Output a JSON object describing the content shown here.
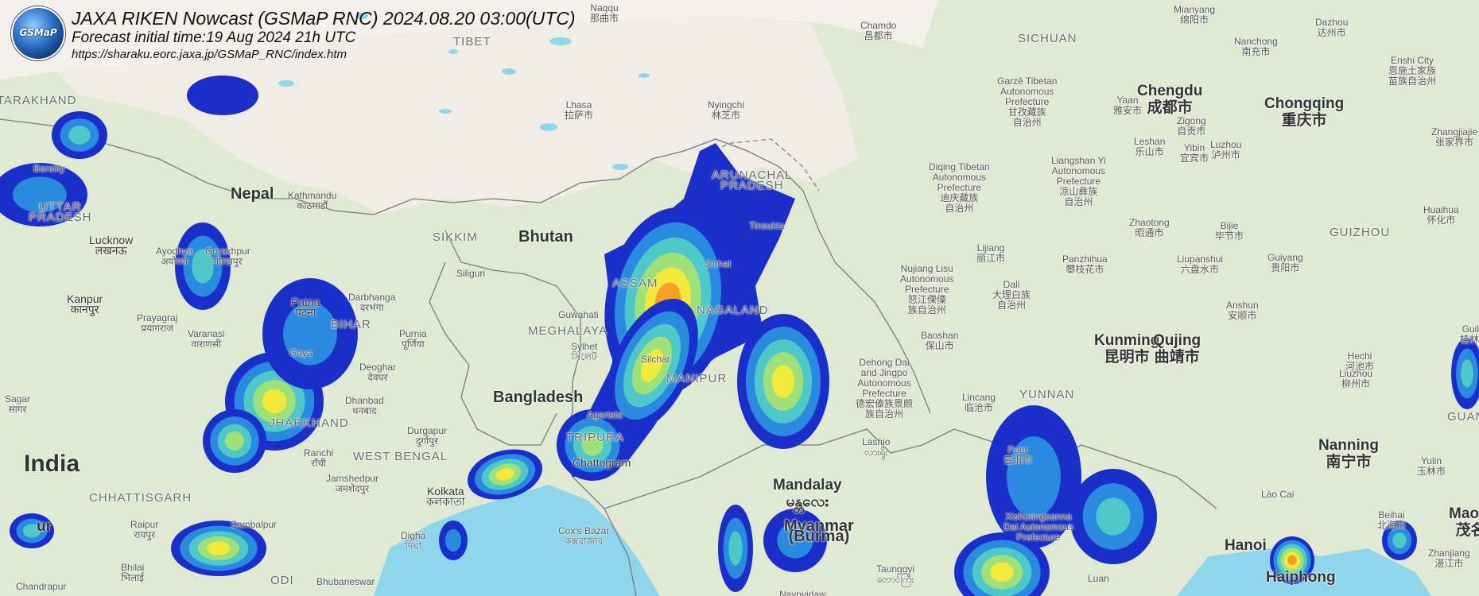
{
  "header": {
    "logo_text": "GSMaP",
    "title": "JAXA RIKEN Nowcast (GSMaP RNC) 2024.08.20 03:00(UTC)",
    "forecast": "Forecast initial time:19 Aug 2024 21h UTC",
    "url": "https://sharaku.eorc.jaxa.jp/GSMaP_RNC/index.htm"
  },
  "colors": {
    "land": "#dfe9d3",
    "plateau": "#f1ede6",
    "water": "#8fd6ec",
    "rain_light": "#1a2fc9",
    "rain_mod": "#2a8ae0",
    "rain_medium": "#4ec8c8",
    "rain_heavy": "#9ee07a",
    "rain_very_heavy": "#f2ea3a",
    "rain_extreme": "#f4a020"
  },
  "labels": {
    "naqqu": "Naqqu\n那曲市",
    "chamdo": "Chamdo\n昌都市",
    "mianyang": "Mianyang\n绵阳市",
    "dazhou": "Dazhou\n达州市",
    "tibet": "TIBET",
    "sichuan": "SICHUAN",
    "nanchong": "Nanchong\n南充市",
    "enshi": "Enshi City\n恩施土家族\n苗族自治州",
    "garze": "Garzê Tibetan\nAutonomous\nPrefecture\n甘孜藏族\n自治州",
    "yaan": "Yaan\n雅安市",
    "chengdu": "Chengdu\n成都市",
    "chongqing": "Chongqing\n重庆市",
    "lhasa": "Lhasa\n拉萨市",
    "nyingchi": "Nyingchi\n林芝市",
    "zigong": "Zigong\n自贡市",
    "leshan": "Leshan\n乐山市",
    "yibin": "Yibin\n宜宾市",
    "luzhou": "Luzhou\n泸州市",
    "zhangjiajie": "Zhangjiajie\n张家界市",
    "tarakhand": "TARAKHAND",
    "bareilly": "Bareilly",
    "arunachal": "ARUNACHAL\nPRADESH",
    "diqing": "Diqing Tibetan\nAutonomous\nPrefecture\n迪庆藏族\n自治州",
    "liangshan": "Liangshan Yi\nAutonomous\nPrefecture\n凉山彝族\n自治州",
    "huaihua": "Huaihua\n怀化市",
    "nepal": "Nepal",
    "kathmandu": "Kathmandu\nकाठमाडौं",
    "uttar": "UTTAR\nPRADESH",
    "tinsukia": "Tinsukia",
    "zhaotong": "Zhaotong\n昭通市",
    "bijie": "Bijie\n毕节市",
    "guizhou": "GUIZHOU",
    "sikkim": "SIKKIM",
    "bhutan": "Bhutan",
    "lucknow": "Lucknow\nलखनऊ",
    "ayodhya": "Ayodhya\nअयोध्या",
    "gorakhpur": "Gorakhpur\nगोरखपुर",
    "lijiang": "Lijiang\n丽江市",
    "panzhihua": "Panzhihua\n攀枝花市",
    "liupanshui": "Liupanshui\n六盘水市",
    "guiyang": "Guiyang\n贵阳市",
    "siliguri": "Siliguri",
    "jorhat": "Jorhat",
    "nujiang": "Nujiang Lisu\nAutonomous\nPrefecture\n怒江傈僳\n族自治州",
    "dali": "Dali\n大理白族\n自治州",
    "assam": "ASSAM",
    "kanpur": "Kanpur\nकानपुर",
    "patna": "Patna\nपटना",
    "darbhanga": "Darbhanga\nदरभंगा",
    "guwahati": "Guwahati",
    "nagaland": "NAGALAND",
    "anshun": "Anshun\n安顺市",
    "prayagraj": "Prayagraj\nप्रयागराज",
    "varanasi": "Varanasi\nवाराणसी",
    "bihar": "BIHAR",
    "purnia": "Purnia\nपूर्णिया",
    "meghalaya": "MEGHALAYA",
    "kunming": "Kunming\n昆明市",
    "qujing": "Qujing\n曲靖市",
    "guilin": "Guilin\n桂林市",
    "baoshan": "Baoshan\n保山市",
    "gaya": "Gaya",
    "sylhet": "Sylhet\nসিলেট",
    "silchar": "Silchar",
    "hechi": "Hechi\n河池市",
    "deoghar": "Deoghar\nदेवघर",
    "manipur": "MANIPUR",
    "dehong": "Dehong Dai\nand Jingpo\nAutonomous\nPrefecture\n德宏傣族景颇\n族自治州",
    "liuzhou": "Liuzhou\n柳州市",
    "sagar": "Sagar\nसागर",
    "dhanbad": "Dhanbad\nधनबाद",
    "bangladesh": "Bangladesh",
    "yunnan": "YUNNAN",
    "lincang": "Lincang\n临沧市",
    "jharkhand": "JHARKHAND",
    "durgapur": "Durgapur\nदुर्गापुर",
    "agartala": "Agartala",
    "guang": "GUANG",
    "india": "India",
    "ranchi": "Ranchi\nराँची",
    "westbengal": "WEST BENGAL",
    "tripura": "TRIPURA",
    "lashio": "Lashio\nလားရှိုး",
    "puer": "Puer\n普洱市",
    "nanning": "Nanning\n南宁市",
    "yulin": "Yulin\n玉林市",
    "chattogram": "Chattogram",
    "jamshedpur": "Jamshedpur\nजमशेदपुर",
    "chhattisgarh": "CHHATTISGARH",
    "kolkata": "Kolkata\nকলকাতা",
    "mandalay": "Mandalay\nမန္တလေး",
    "laocai": "Lào Cai",
    "maom": "Maom\n茂名",
    "raipur": "Raipur\nरायपुर",
    "sambalpur": "Sambalpur",
    "xishuangbanna": "Xishuangbanna\nDai Autonomous\nPrefecture",
    "beihai": "Beihai\n北海市",
    "digha": "Digha\nদিঘা",
    "coxsbazar": "Cox's Bazar\nকক্সবাজার",
    "myanmar": "Myanmar\n(Burma)",
    "zhanjiang": "Zhanjiang\n湛江市",
    "bhilai": "Bhilai\nभिलाई",
    "hanoi": "Hanoi",
    "haiphong": "Haiphong",
    "chandrapur": "Chandrapur",
    "bhubaneswar": "Bhubaneswar",
    "odi": "ODI",
    "taunggyi": "Taunggyi\nတောင်ကြီး",
    "naypyidaw": "Naypyidaw",
    "luang": "Luan",
    "nur": "ur"
  }
}
